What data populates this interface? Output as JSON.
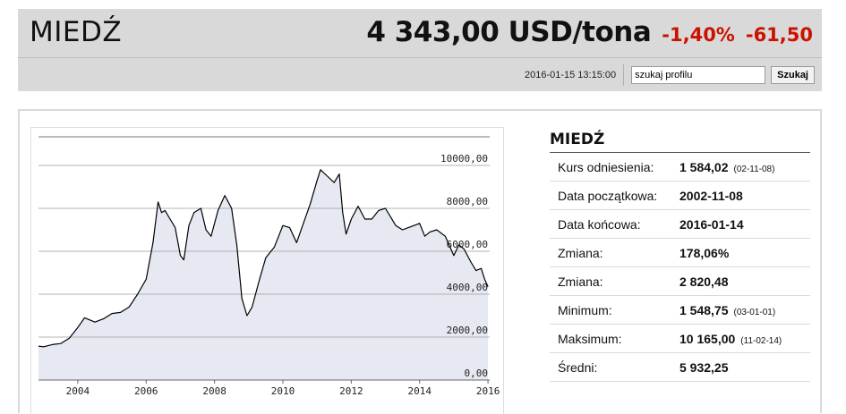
{
  "header": {
    "title": "MIEDŹ",
    "price": "4 343,00 USD/tona",
    "change_pct": "-1,40%",
    "change_abs": "-61,50",
    "datetime": "2016-01-15 13:15:00",
    "search_value": "szukaj profilu",
    "search_button": "Szukaj"
  },
  "stats": {
    "title": "MIEDŹ",
    "rows": [
      {
        "label": "Kurs odniesienia:",
        "value": "1 584,02",
        "note": "(02-11-08)"
      },
      {
        "label": "Data początkowa:",
        "value": "2002-11-08",
        "note": ""
      },
      {
        "label": "Data końcowa:",
        "value": "2016-01-14",
        "note": ""
      },
      {
        "label": "Zmiana:",
        "value": "178,06%",
        "note": ""
      },
      {
        "label": "Zmiana:",
        "value": "2 820,48",
        "note": ""
      },
      {
        "label": "Minimum:",
        "value": "1 548,75",
        "note": "(03-01-01)"
      },
      {
        "label": "Maksimum:",
        "value": "10 165,00",
        "note": "(11-02-14)"
      },
      {
        "label": "Średni:",
        "value": "5 932,25",
        "note": ""
      }
    ]
  },
  "colors": {
    "negative": "#cc1100",
    "area_fill": "#e6e9f2",
    "line": "#000000",
    "header_bg": "#d9d9d9"
  },
  "chart_data": {
    "type": "area",
    "title": "",
    "xlabel": "",
    "ylabel": "",
    "ylim": [
      0,
      11000
    ],
    "xlim": [
      2002.85,
      2016.05
    ],
    "y_ticks": [
      0,
      2000,
      4000,
      6000,
      8000,
      10000
    ],
    "y_tick_labels": [
      "0,00",
      "2000,00",
      "4000,00",
      "6000,00",
      "8000,00",
      "10000,00"
    ],
    "x_ticks": [
      2004,
      2006,
      2008,
      2010,
      2012,
      2014,
      2016
    ],
    "x_tick_labels": [
      "2004",
      "2006",
      "2008",
      "2010",
      "2012",
      "2014",
      "2016"
    ],
    "grid": "horizontal",
    "x": [
      2002.85,
      2003.0,
      2003.25,
      2003.5,
      2003.75,
      2004.0,
      2004.2,
      2004.5,
      2004.75,
      2005.0,
      2005.25,
      2005.5,
      2005.75,
      2006.0,
      2006.2,
      2006.35,
      2006.45,
      2006.55,
      2006.7,
      2006.85,
      2007.0,
      2007.1,
      2007.25,
      2007.4,
      2007.6,
      2007.75,
      2007.9,
      2008.1,
      2008.3,
      2008.5,
      2008.65,
      2008.8,
      2008.95,
      2009.1,
      2009.3,
      2009.5,
      2009.75,
      2010.0,
      2010.2,
      2010.4,
      2010.6,
      2010.8,
      2011.0,
      2011.1,
      2011.3,
      2011.5,
      2011.65,
      2011.75,
      2011.85,
      2012.0,
      2012.2,
      2012.4,
      2012.6,
      2012.8,
      2013.0,
      2013.15,
      2013.3,
      2013.5,
      2013.75,
      2014.0,
      2014.15,
      2014.3,
      2014.5,
      2014.75,
      2015.0,
      2015.15,
      2015.3,
      2015.5,
      2015.65,
      2015.8,
      2015.9,
      2016.0
    ],
    "y": [
      1580,
      1550,
      1650,
      1700,
      1950,
      2450,
      2900,
      2700,
      2850,
      3100,
      3150,
      3400,
      4000,
      4700,
      6400,
      8300,
      7800,
      7900,
      7500,
      7100,
      5800,
      5600,
      7200,
      7800,
      8000,
      7000,
      6700,
      7900,
      8600,
      8000,
      6300,
      3800,
      3000,
      3400,
      4600,
      5700,
      6200,
      7200,
      7100,
      6400,
      7300,
      8200,
      9300,
      9800,
      9500,
      9200,
      9600,
      7800,
      6800,
      7500,
      8100,
      7500,
      7500,
      7900,
      8000,
      7600,
      7200,
      7000,
      7150,
      7300,
      6700,
      6900,
      7000,
      6700,
      5800,
      6300,
      6100,
      5500,
      5100,
      5200,
      4700,
      4350
    ]
  }
}
